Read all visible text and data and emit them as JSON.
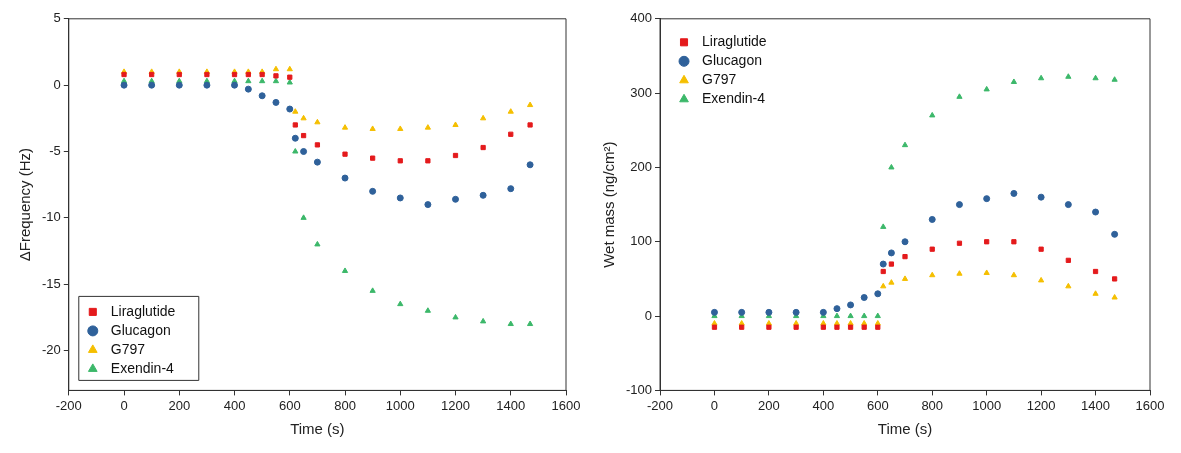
{
  "chart_data": [
    {
      "type": "scatter",
      "xlabel": "Time (s)",
      "ylabel": "ΔFrequency (Hz)",
      "xlim": [
        -200,
        1600
      ],
      "ylim": [
        -23,
        5
      ],
      "xticks": [
        -200,
        0,
        200,
        400,
        600,
        800,
        1000,
        1200,
        1400,
        1600
      ],
      "yticks": [
        5,
        0,
        -5,
        -10,
        -15,
        -20
      ],
      "grid": false,
      "legend": "bottom left",
      "x": [
        0,
        100,
        200,
        300,
        400,
        450,
        500,
        550,
        600,
        620,
        650,
        700,
        800,
        900,
        1000,
        1100,
        1200,
        1300,
        1400,
        1470
      ],
      "series": [
        {
          "name": "Liraglutide",
          "color": "#e41a1c",
          "marker": "square",
          "values": [
            0.8,
            0.8,
            0.8,
            0.8,
            0.8,
            0.8,
            0.8,
            0.7,
            0.6,
            -3,
            -3.8,
            -4.5,
            -5.2,
            -5.5,
            -5.7,
            -5.7,
            -5.3,
            -4.7,
            -3.7,
            -3
          ]
        },
        {
          "name": "Glucagon",
          "color": "#2f619a",
          "marker": "circle",
          "values": [
            0,
            0,
            0,
            0,
            0,
            -0.3,
            -0.8,
            -1.3,
            -1.8,
            -4,
            -5,
            -5.8,
            -7,
            -8,
            -8.5,
            -9,
            -8.6,
            -8.3,
            -7.8,
            -6
          ]
        },
        {
          "name": "G797",
          "color": "#f5bf00",
          "marker": "triangle",
          "values": [
            1,
            1,
            1,
            1,
            1,
            1,
            1,
            1.2,
            1.2,
            -2,
            -2.5,
            -2.8,
            -3.2,
            -3.3,
            -3.3,
            -3.2,
            -3,
            -2.5,
            -2,
            -1.5
          ]
        },
        {
          "name": "Exendin-4",
          "color": "#3cb86a",
          "marker": "triangle",
          "values": [
            0.3,
            0.3,
            0.3,
            0.3,
            0.3,
            0.3,
            0.3,
            0.3,
            0.2,
            -5,
            -10,
            -12,
            -14,
            -15.5,
            -16.5,
            -17,
            -17.5,
            -17.8,
            -18,
            -18
          ]
        }
      ]
    },
    {
      "type": "scatter",
      "xlabel": "Time (s)",
      "ylabel": "Wet mass (ng/cm²)",
      "xlim": [
        -200,
        1600
      ],
      "ylim": [
        -100,
        400
      ],
      "xticks": [
        -200,
        0,
        200,
        400,
        600,
        800,
        1000,
        1200,
        1400,
        1600
      ],
      "yticks": [
        -100,
        0,
        100,
        200,
        300,
        400
      ],
      "grid": false,
      "legend": "top left",
      "x": [
        0,
        100,
        200,
        300,
        400,
        450,
        500,
        550,
        600,
        620,
        650,
        700,
        800,
        900,
        1000,
        1100,
        1200,
        1300,
        1400,
        1470
      ],
      "series": [
        {
          "name": "Liraglutide",
          "color": "#e41a1c",
          "marker": "square",
          "values": [
            -15,
            -15,
            -15,
            -15,
            -15,
            -15,
            -15,
            -15,
            -15,
            60,
            70,
            80,
            90,
            98,
            100,
            100,
            90,
            75,
            60,
            50
          ]
        },
        {
          "name": "Glucagon",
          "color": "#2f619a",
          "marker": "circle",
          "values": [
            5,
            5,
            5,
            5,
            5,
            10,
            15,
            25,
            30,
            70,
            85,
            100,
            130,
            150,
            158,
            165,
            160,
            150,
            140,
            110
          ]
        },
        {
          "name": "G797",
          "color": "#f5bf00",
          "marker": "triangle",
          "values": [
            -10,
            -10,
            -10,
            -10,
            -10,
            -10,
            -10,
            -10,
            -10,
            40,
            45,
            50,
            55,
            57,
            58,
            55,
            48,
            40,
            30,
            25
          ]
        },
        {
          "name": "Exendin-4",
          "color": "#3cb86a",
          "marker": "triangle",
          "values": [
            0,
            0,
            0,
            0,
            0,
            0,
            0,
            0,
            0,
            120,
            200,
            230,
            270,
            295,
            305,
            315,
            320,
            322,
            320,
            318
          ]
        }
      ]
    }
  ]
}
